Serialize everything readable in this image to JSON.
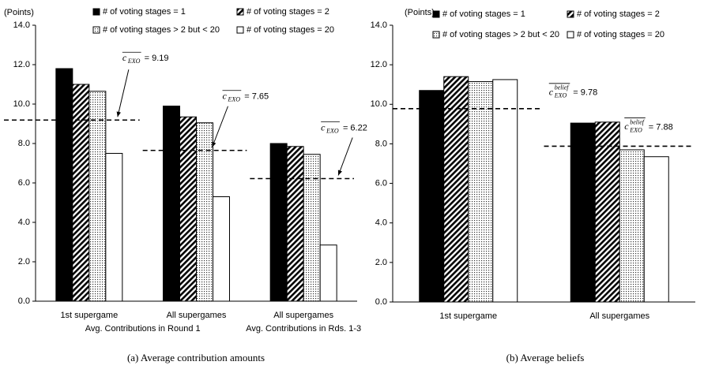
{
  "chart_data": [
    {
      "type": "bar",
      "caption": "(a) Average contribution amounts",
      "y_unit": "(Points)",
      "categories": [
        "1st supergame",
        "All supergames",
        "All supergames"
      ],
      "group_labels": [
        "Avg. Contributions in Round 1",
        "Avg. Contributions in Rds. 1-3"
      ],
      "ylim": [
        0,
        14
      ],
      "yticks": [
        {
          "value": 0,
          "label": "0.0"
        },
        {
          "value": 2,
          "label": "2.0"
        },
        {
          "value": 4,
          "label": "4.0"
        },
        {
          "value": 6,
          "label": "6.0"
        },
        {
          "value": 8,
          "label": "8.0"
        },
        {
          "value": 10,
          "label": "10.0"
        },
        {
          "value": 12,
          "label": "12.0"
        },
        {
          "value": 14,
          "label": "14.0"
        }
      ],
      "series": [
        {
          "name": "# of voting stages = 1",
          "color": "#000000",
          "pattern": "solid",
          "values": [
            11.8,
            9.9,
            8.0
          ]
        },
        {
          "name": "# of voting stages = 2",
          "color": "#000000",
          "pattern": "hatch",
          "values": [
            11.0,
            9.35,
            7.85
          ]
        },
        {
          "name": "# of voting stages > 2 but < 20",
          "color": "#000000",
          "pattern": "dots",
          "values": [
            10.65,
            9.05,
            7.45
          ]
        },
        {
          "name": "# of voting stages = 20",
          "color": "#ffffff",
          "pattern": "none",
          "values": [
            7.5,
            5.3,
            2.85
          ]
        }
      ],
      "reference_lines": [
        {
          "value": 9.19,
          "symbol": "c",
          "subscript": "EXO",
          "label": "= 9.19"
        },
        {
          "value": 7.65,
          "symbol": "c",
          "subscript": "EXO",
          "label": "= 7.65"
        },
        {
          "value": 6.22,
          "symbol": "c",
          "subscript": "EXO",
          "label": "= 6.22"
        }
      ]
    },
    {
      "type": "bar",
      "caption": "(b) Average beliefs",
      "y_unit": "(Points)",
      "categories": [
        "1st supergame",
        "All supergames"
      ],
      "ylim": [
        0,
        14
      ],
      "yticks": [
        {
          "value": 0,
          "label": "0.0"
        },
        {
          "value": 2,
          "label": "2.0"
        },
        {
          "value": 4,
          "label": "4.0"
        },
        {
          "value": 6,
          "label": "6.0"
        },
        {
          "value": 8,
          "label": "8.0"
        },
        {
          "value": 10,
          "label": "10.0"
        },
        {
          "value": 12,
          "label": "12.0"
        },
        {
          "value": 14,
          "label": "14.0"
        }
      ],
      "series": [
        {
          "name": "# of voting stages = 1",
          "color": "#000000",
          "pattern": "solid",
          "values": [
            10.7,
            9.05
          ]
        },
        {
          "name": "# of voting stages = 2",
          "color": "#000000",
          "pattern": "hatch",
          "values": [
            11.4,
            9.1
          ]
        },
        {
          "name": "# of voting stages > 2 but < 20",
          "color": "#000000",
          "pattern": "dots",
          "values": [
            11.15,
            7.7
          ]
        },
        {
          "name": "# of voting stages = 20",
          "color": "#ffffff",
          "pattern": "none",
          "values": [
            11.25,
            7.35
          ]
        }
      ],
      "reference_lines": [
        {
          "value": 9.78,
          "symbol": "c",
          "superscript": "belief",
          "subscript": "EXO",
          "label": "= 9.78"
        },
        {
          "value": 7.88,
          "symbol": "c",
          "superscript": "belief",
          "subscript": "EXO",
          "label": "= 7.88"
        }
      ]
    }
  ]
}
